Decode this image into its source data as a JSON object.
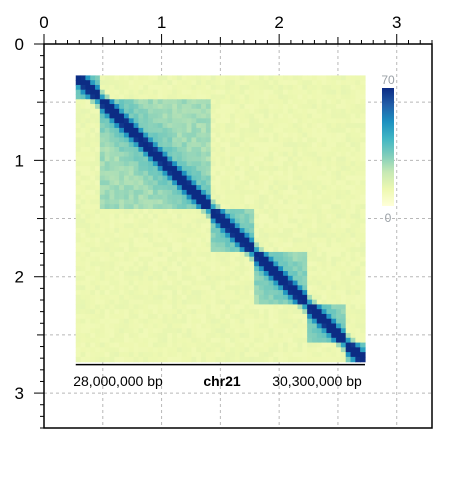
{
  "chart_data": {
    "type": "heatmap",
    "title": "",
    "frame_x_ticks": [
      "0",
      "1",
      "2",
      "3"
    ],
    "frame_x_values": [
      0,
      1,
      2,
      3
    ],
    "frame_y_ticks": [
      "0",
      "1",
      "2",
      "3"
    ],
    "frame_y_values": [
      0,
      1,
      2,
      3
    ],
    "frame_xlim": [
      0,
      3.3
    ],
    "frame_ylim": [
      0,
      3.3
    ],
    "grid": true,
    "region": {
      "chromosome": "chr21",
      "start_label": "28,000,000 bp",
      "end_label": "30,300,000 bp",
      "frame_start": 0.27,
      "frame_end": 2.73
    },
    "color_scale": {
      "max_label": "70",
      "min_label": "0",
      "min": 0,
      "max": 70,
      "colors": [
        "#ffffd9",
        "#edf8b1",
        "#c7e9b4",
        "#7fcdbb",
        "#41b6c4",
        "#1d91c0",
        "#225ea8",
        "#0c2c84"
      ]
    },
    "domains": [
      [
        0.0,
        0.09
      ],
      [
        0.09,
        0.47
      ],
      [
        0.47,
        0.62
      ],
      [
        0.62,
        0.8
      ],
      [
        0.8,
        0.94
      ],
      [
        0.94,
        1.0
      ]
    ],
    "domain_corner_intensity": 0.5,
    "domain_intensity": 0.32,
    "background_intensity": 0.12
  }
}
